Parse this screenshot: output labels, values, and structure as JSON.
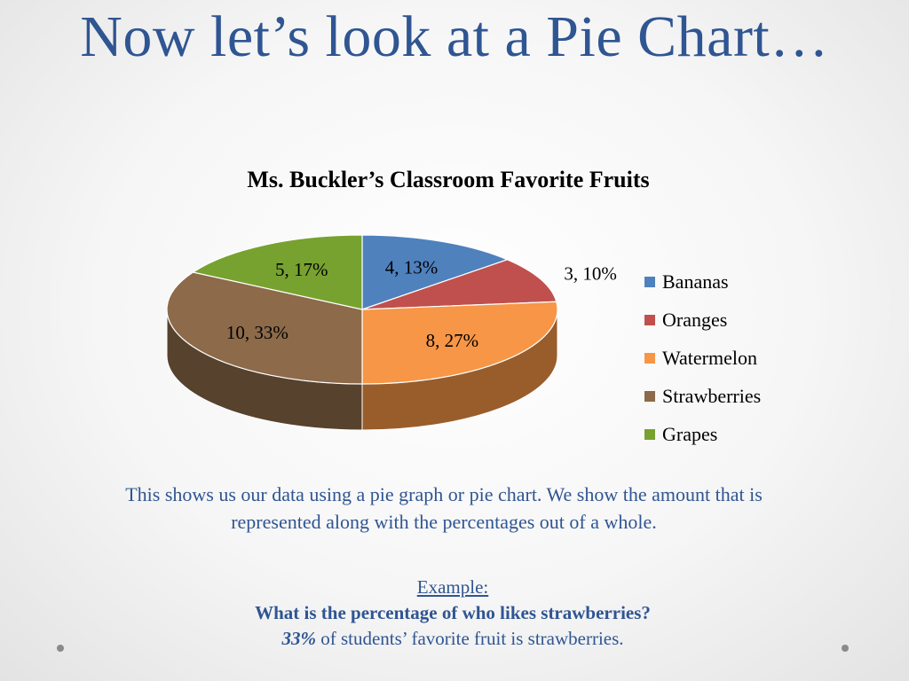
{
  "slide": {
    "title": "Now let’s look at a Pie Chart…",
    "description": "This shows us our data using a pie graph or pie chart. We show the amount that is represented along with the percentages out of a whole.",
    "example_label": "Example:",
    "example_question": "What is the percentage of who likes strawberries?",
    "answer_value": "33%",
    "answer_text": " of students’ favorite fruit is strawberries."
  },
  "chart_data": {
    "type": "pie",
    "title": "Ms. Buckler’s Classroom Favorite Fruits",
    "three_d": true,
    "legend_position": "right",
    "categories": [
      "Bananas",
      "Oranges",
      "Watermelon",
      "Strawberries",
      "Grapes"
    ],
    "values": [
      4,
      3,
      8,
      10,
      5
    ],
    "percents": [
      13,
      10,
      27,
      33,
      17
    ],
    "data_labels": [
      "4, 13%",
      "3, 10%",
      "8, 27%",
      "10, 33%",
      "5, 17%"
    ],
    "colors": [
      "#4f81bd",
      "#c0504d",
      "#f79646",
      "#8c6a4a",
      "#77a22f"
    ]
  }
}
